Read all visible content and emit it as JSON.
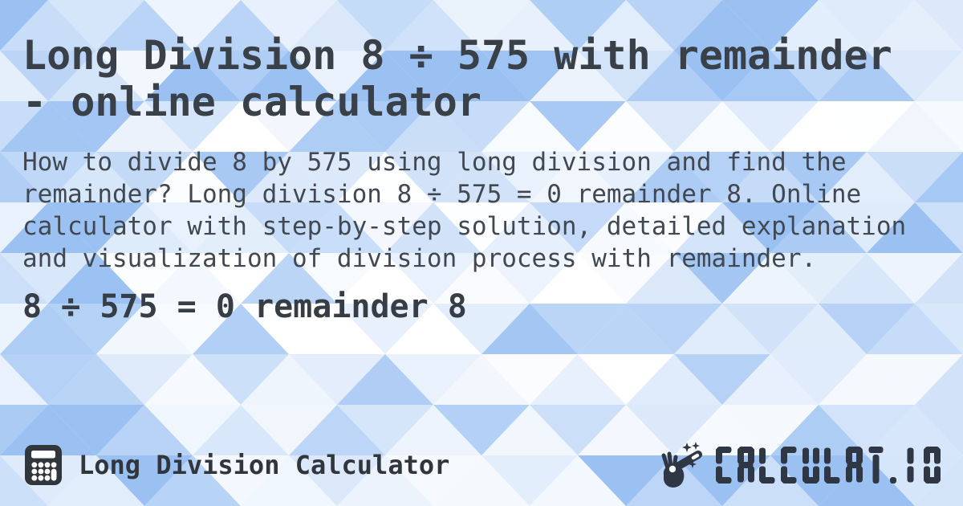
{
  "header": {
    "title": "Long Division 8 ÷ 575 with remainder\n- online calculator"
  },
  "main": {
    "description": "How to divide 8 by 575 using long division and find the remainder? Long division 8 ÷ 575 = 0 remainder 8. Online calculator with step-by-step solution, detailed explanation and visualization of division process with remainder.",
    "result": "8 ÷ 575 = 0 remainder 8"
  },
  "footer": {
    "label": "Long Division Calculator",
    "brand": "CALCULAT.IO",
    "icons": {
      "left": "calculator-icon",
      "right": "magic-wand-icon"
    }
  },
  "colors": {
    "title_text": "#3a4047",
    "body_text": "#414851",
    "result_text": "#373d44",
    "footer_text": "#30363c",
    "icon_dark": "#30363c",
    "brand_dark": "#2f3644",
    "pattern_blue": "#7fb0ef",
    "pattern_base": "#f3f8fe"
  }
}
